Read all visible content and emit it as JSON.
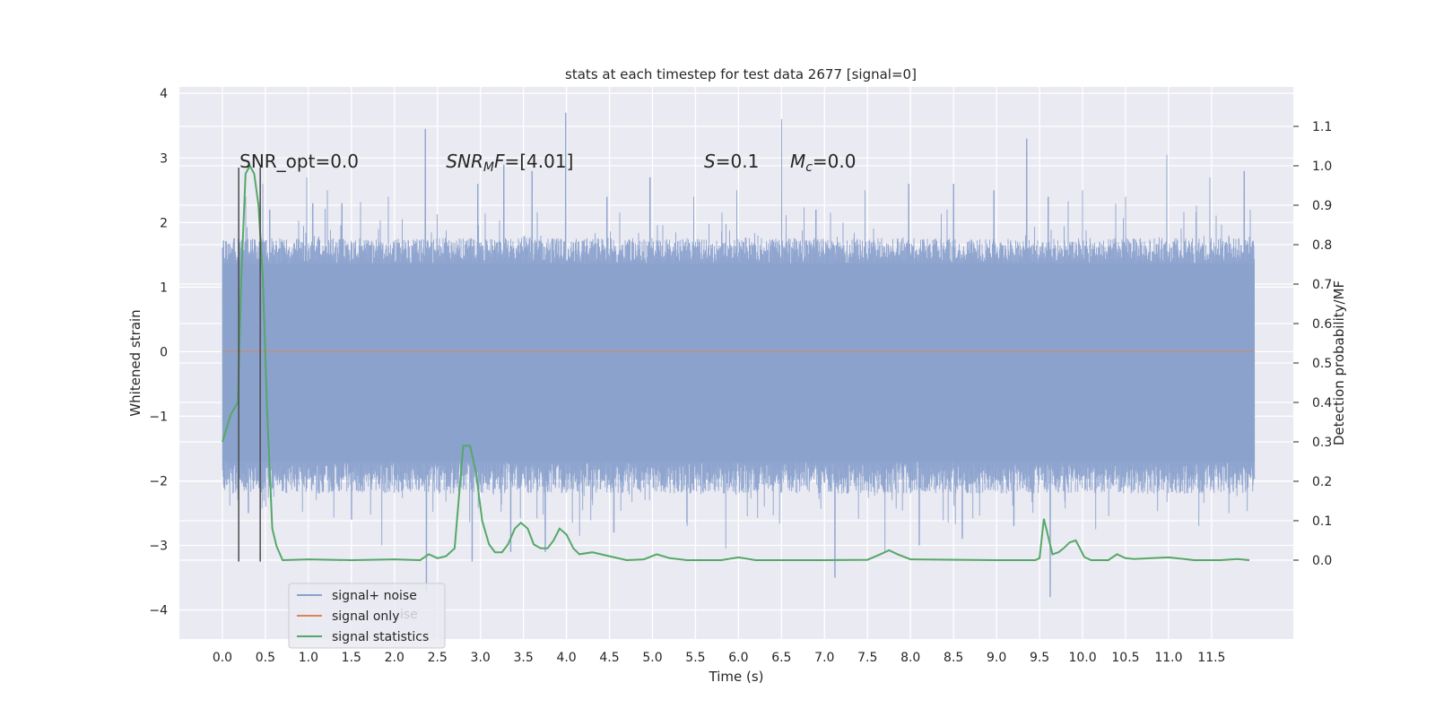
{
  "chart_data": {
    "type": "line",
    "title": "stats at each timestep for test data 2677 [signal=0]",
    "xlabel": "Time (s)",
    "ylabel": "Whitened strain",
    "ylabel_right": "Detection probability/MF",
    "xlim": [
      -0.5,
      12.45
    ],
    "ylim": [
      -4.45,
      4.1
    ],
    "ylim_right": [
      -0.2,
      1.2
    ],
    "x_ticks": [
      0.0,
      0.5,
      1.0,
      1.5,
      2.0,
      2.5,
      3.0,
      3.5,
      4.0,
      4.5,
      5.0,
      5.5,
      6.0,
      6.5,
      7.0,
      7.5,
      8.0,
      8.5,
      9.0,
      9.5,
      10.0,
      10.5,
      11.0,
      11.5
    ],
    "x_tick_labels": [
      "0.0",
      "0.5",
      "1.0",
      "1.5",
      "2.0",
      "2.5",
      "3.0",
      "3.5",
      "4.0",
      "4.5",
      "5.0",
      "5.5",
      "6.0",
      "6.5",
      "7.0",
      "7.5",
      "8.0",
      "8.5",
      "9.0",
      "9.5",
      "10.0",
      "10.5",
      "11.0",
      "11.5"
    ],
    "y_ticks": [
      -4,
      -3,
      -2,
      -1,
      0,
      1,
      2,
      3,
      4
    ],
    "y_tick_labels": [
      "−4",
      "−3",
      "−2",
      "−1",
      "0",
      "1",
      "2",
      "3",
      "4"
    ],
    "y_right_ticks": [
      0.0,
      0.1,
      0.2,
      0.3,
      0.4,
      0.5,
      0.6,
      0.7,
      0.8,
      0.9,
      1.0,
      1.1
    ],
    "y_right_tick_labels": [
      "0.0",
      "0.1",
      "0.2",
      "0.3",
      "0.4",
      "0.5",
      "0.6",
      "0.7",
      "0.8",
      "0.9",
      "1.0",
      "1.1"
    ],
    "grid": true,
    "legend_position": "lower-left",
    "annotations": [
      {
        "text": "SNR_opt=0.0",
        "x": 0.2,
        "y": 2.95
      },
      {
        "text_parts": [
          "SNR",
          "M",
          "F=[4.01]"
        ],
        "x": 2.6,
        "y": 2.95
      },
      {
        "text_parts": [
          "S",
          "=0.1"
        ],
        "x": 5.6,
        "y": 2.95
      },
      {
        "text_parts": [
          "M",
          "c",
          "=0.0"
        ],
        "x": 6.6,
        "y": 2.95
      }
    ],
    "legend_ghost_text": "ise",
    "vlines": [
      {
        "x": 0.19,
        "y0": -3.25,
        "y1": 2.85
      },
      {
        "x": 0.44,
        "y0": -3.25,
        "y1": 2.85
      }
    ],
    "colors": {
      "noise": "#8aa1cc",
      "signal": "#dd8452",
      "stats": "#55a868",
      "vline": "#4c4c4c",
      "background": "#eaeaf2",
      "grid": "#ffffff"
    },
    "series": [
      {
        "name": "signal+ noise",
        "axis": "left",
        "sample_rate_hz": 2048,
        "t_start": 0.0,
        "t_end": 12.0,
        "typical_upper": 1.6,
        "typical_lower": -2.0,
        "peaks": [
          {
            "x": 0.27,
            "y": 2.4
          },
          {
            "x": 0.47,
            "y": 2.6
          },
          {
            "x": 0.55,
            "y": 2.2
          },
          {
            "x": 0.98,
            "y": 2.7
          },
          {
            "x": 1.05,
            "y": 2.3
          },
          {
            "x": 1.22,
            "y": 2.5
          },
          {
            "x": 1.39,
            "y": 2.3
          },
          {
            "x": 1.93,
            "y": 2.4
          },
          {
            "x": 2.36,
            "y": 3.45
          },
          {
            "x": 2.97,
            "y": 2.6
          },
          {
            "x": 3.27,
            "y": 2.9
          },
          {
            "x": 3.6,
            "y": 2.8
          },
          {
            "x": 3.99,
            "y": 3.7
          },
          {
            "x": 4.47,
            "y": 2.4
          },
          {
            "x": 4.97,
            "y": 2.7
          },
          {
            "x": 5.48,
            "y": 2.4
          },
          {
            "x": 5.98,
            "y": 2.5
          },
          {
            "x": 6.5,
            "y": 3.6
          },
          {
            "x": 6.9,
            "y": 2.2
          },
          {
            "x": 7.47,
            "y": 2.5
          },
          {
            "x": 7.98,
            "y": 2.6
          },
          {
            "x": 8.5,
            "y": 2.6
          },
          {
            "x": 8.97,
            "y": 2.5
          },
          {
            "x": 9.35,
            "y": 3.3
          },
          {
            "x": 9.6,
            "y": 2.4
          },
          {
            "x": 10.0,
            "y": 2.5
          },
          {
            "x": 10.5,
            "y": 2.4
          },
          {
            "x": 10.98,
            "y": 3.05
          },
          {
            "x": 11.48,
            "y": 2.7
          },
          {
            "x": 11.88,
            "y": 2.8
          },
          {
            "x": 11.95,
            "y": 2.2
          }
        ],
        "troughs": [
          {
            "x": 0.3,
            "y": -2.5
          },
          {
            "x": 0.5,
            "y": -2.4
          },
          {
            "x": 1.5,
            "y": -2.6
          },
          {
            "x": 1.85,
            "y": -3.0
          },
          {
            "x": 2.37,
            "y": -3.7
          },
          {
            "x": 2.9,
            "y": -3.25
          },
          {
            "x": 3.35,
            "y": -3.1
          },
          {
            "x": 3.75,
            "y": -3.1
          },
          {
            "x": 4.15,
            "y": -2.85
          },
          {
            "x": 4.55,
            "y": -2.8
          },
          {
            "x": 5.4,
            "y": -2.7
          },
          {
            "x": 5.85,
            "y": -3.05
          },
          {
            "x": 6.1,
            "y": -2.55
          },
          {
            "x": 7.12,
            "y": -3.5
          },
          {
            "x": 7.7,
            "y": -3.1
          },
          {
            "x": 8.1,
            "y": -3.0
          },
          {
            "x": 8.6,
            "y": -2.9
          },
          {
            "x": 9.2,
            "y": -2.7
          },
          {
            "x": 9.62,
            "y": -3.8
          },
          {
            "x": 10.15,
            "y": -2.75
          },
          {
            "x": 11.35,
            "y": -2.7
          },
          {
            "x": 11.7,
            "y": -2.5
          }
        ]
      },
      {
        "name": "signal only",
        "axis": "left",
        "x": [
          0.0,
          12.0
        ],
        "y": [
          0.0,
          0.0
        ]
      },
      {
        "name": "signal statistics",
        "axis": "right",
        "x": [
          0.0,
          0.1,
          0.18,
          0.22,
          0.27,
          0.32,
          0.37,
          0.42,
          0.47,
          0.52,
          0.58,
          0.63,
          0.7,
          1.0,
          1.5,
          2.0,
          2.3,
          2.4,
          2.5,
          2.6,
          2.7,
          2.8,
          2.88,
          2.95,
          3.02,
          3.1,
          3.17,
          3.25,
          3.32,
          3.4,
          3.47,
          3.55,
          3.62,
          3.7,
          3.78,
          3.85,
          3.92,
          4.0,
          4.08,
          4.15,
          4.3,
          4.5,
          4.7,
          4.9,
          5.05,
          5.2,
          5.4,
          5.8,
          6.0,
          6.2,
          6.5,
          7.0,
          7.5,
          7.65,
          7.75,
          7.85,
          8.0,
          9.0,
          9.45,
          9.5,
          9.55,
          9.6,
          9.65,
          9.72,
          9.78,
          9.85,
          9.92,
          9.97,
          10.02,
          10.1,
          10.2,
          10.3,
          10.4,
          10.5,
          10.6,
          10.8,
          11.0,
          11.3,
          11.6,
          11.8,
          11.94
        ],
        "y": [
          0.3,
          0.37,
          0.4,
          0.72,
          0.98,
          1.0,
          0.98,
          0.9,
          0.72,
          0.38,
          0.08,
          0.035,
          0.0,
          0.002,
          0.0,
          0.002,
          0.0,
          0.015,
          0.005,
          0.01,
          0.03,
          0.29,
          0.29,
          0.22,
          0.1,
          0.04,
          0.02,
          0.02,
          0.04,
          0.08,
          0.095,
          0.08,
          0.04,
          0.03,
          0.03,
          0.05,
          0.08,
          0.065,
          0.03,
          0.015,
          0.02,
          0.01,
          0.0,
          0.002,
          0.015,
          0.005,
          0.0,
          0.0,
          0.007,
          0.0,
          0.0,
          0.0,
          0.001,
          0.015,
          0.025,
          0.015,
          0.002,
          0.0,
          0.0,
          0.005,
          0.105,
          0.06,
          0.015,
          0.02,
          0.03,
          0.045,
          0.05,
          0.03,
          0.008,
          0.0,
          0.0,
          0.0,
          0.015,
          0.005,
          0.003,
          0.005,
          0.007,
          0.0,
          0.0,
          0.003,
          0.0
        ]
      }
    ]
  }
}
